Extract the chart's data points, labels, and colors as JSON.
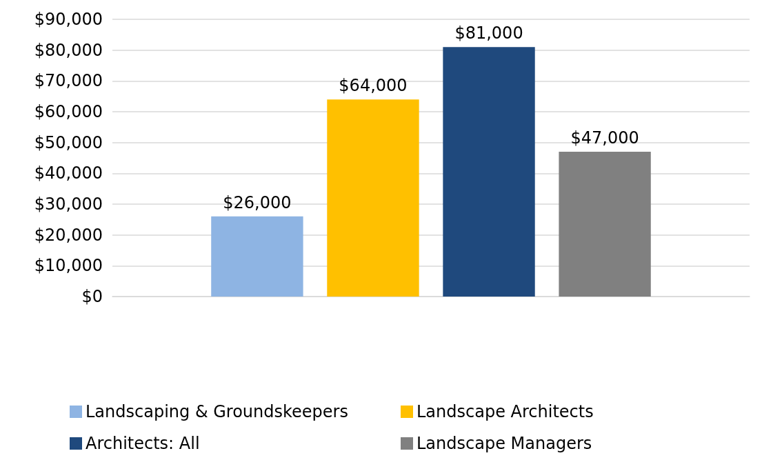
{
  "chart_data": {
    "type": "bar",
    "categories": [
      null
    ],
    "series": [
      {
        "name": "Landscaping & Groundskeepers",
        "color": "#8eb4e3",
        "values": [
          26000
        ],
        "value_labels": [
          "$26,000"
        ]
      },
      {
        "name": "Landscape Architects",
        "color": "#ffc000",
        "values": [
          64000
        ],
        "value_labels": [
          "$64,000"
        ]
      },
      {
        "name": "Architects: All",
        "color": "#1f497d",
        "values": [
          81000
        ],
        "value_labels": [
          "$81,000"
        ]
      },
      {
        "name": "Landscape Managers",
        "color": "#808080",
        "values": [
          47000
        ],
        "value_labels": [
          "$47,000"
        ]
      }
    ],
    "ylim": [
      0,
      90000
    ],
    "yticks": [
      {
        "value": 0,
        "label": "$0"
      },
      {
        "value": 10000,
        "label": "$10,000"
      },
      {
        "value": 20000,
        "label": "$20,000"
      },
      {
        "value": 30000,
        "label": "$30,000"
      },
      {
        "value": 40000,
        "label": "$40,000"
      },
      {
        "value": 50000,
        "label": "$50,000"
      },
      {
        "value": 60000,
        "label": "$60,000"
      },
      {
        "value": 70000,
        "label": "$70,000"
      },
      {
        "value": 80000,
        "label": "$80,000"
      },
      {
        "value": 90000,
        "label": "$90,000"
      }
    ],
    "grid": "y",
    "legend": "bottom"
  }
}
